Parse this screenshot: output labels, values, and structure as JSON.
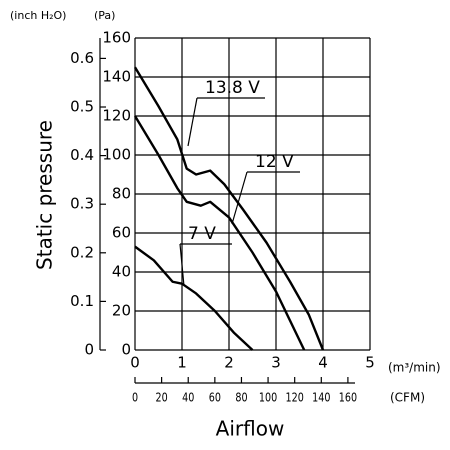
{
  "chart_data": {
    "type": "line",
    "y_label": "Static pressure",
    "x_label": "Airflow",
    "y_unit": "(Pa)",
    "y2_unit": "(inch H₂O)",
    "x_unit": "(m³/min)",
    "x2_unit": "(CFM)",
    "xlim": [
      0,
      5
    ],
    "xticks": [
      0,
      1,
      2,
      3,
      4,
      5
    ],
    "x2lim": [
      0,
      176.6
    ],
    "x2ticks": [
      0,
      20,
      40,
      60,
      80,
      100,
      120,
      140,
      160
    ],
    "ylim": [
      0,
      160
    ],
    "yticks": [
      0,
      20,
      40,
      60,
      80,
      100,
      120,
      140,
      160
    ],
    "y2lim": [
      0,
      0.642
    ],
    "y2ticks": [
      0,
      0.1,
      0.2,
      0.3,
      0.4,
      0.5,
      0.6
    ],
    "grid": true,
    "series": [
      {
        "name": "13.8 V",
        "color": "#000000",
        "x": [
          0,
          0.5,
          0.9,
          1.1,
          1.3,
          1.6,
          1.9,
          2.3,
          2.8,
          3.3,
          3.7,
          4.0
        ],
        "values": [
          145,
          125,
          108,
          93,
          90,
          92,
          85,
          72,
          55,
          35,
          18,
          0
        ]
      },
      {
        "name": "12 V",
        "color": "#000000",
        "x": [
          0,
          0.5,
          0.9,
          1.1,
          1.4,
          1.6,
          2.0,
          2.5,
          3.0,
          3.3,
          3.6
        ],
        "values": [
          120,
          100,
          83,
          76,
          74,
          76,
          68,
          50,
          30,
          15,
          0
        ]
      },
      {
        "name": "7 V",
        "color": "#000000",
        "x": [
          0,
          0.4,
          0.8,
          1.0,
          1.3,
          1.7,
          2.1,
          2.5
        ],
        "values": [
          53,
          46,
          35,
          34,
          29,
          20,
          9,
          0
        ]
      }
    ]
  }
}
